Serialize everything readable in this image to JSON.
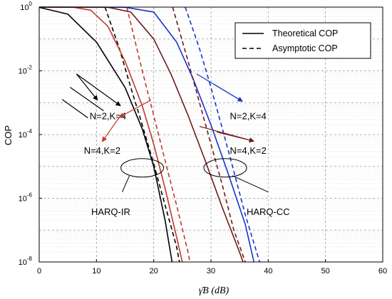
{
  "chart_data": {
    "type": "line",
    "yscale": "log",
    "xlim": [
      0,
      60
    ],
    "ylim": [
      1e-08,
      1
    ],
    "grid": true,
    "xlabel": "γ̄B (dB)",
    "ylabel": "COP",
    "x_ticks": [
      "0",
      "10",
      "20",
      "30",
      "40",
      "50",
      "60"
    ],
    "y_ticks": [
      {
        "base": "10",
        "exp": "0"
      },
      {
        "base": "10",
        "exp": "-2"
      },
      {
        "base": "10",
        "exp": "-4"
      },
      {
        "base": "10",
        "exp": "-6"
      },
      {
        "base": "10",
        "exp": "-8"
      }
    ],
    "legend": {
      "position": "top-right",
      "entries": [
        {
          "label": "Theoretical COP",
          "style": "solid"
        },
        {
          "label": "Asymptotic COP",
          "style": "dashed"
        }
      ]
    },
    "series": [
      {
        "group": "HARQ-IR",
        "params": "N=2,K=4",
        "kind": "theoretical",
        "color": "#000000",
        "style": "solid",
        "points": [
          [
            0,
            0.98
          ],
          [
            5,
            0.6
          ],
          [
            10,
            0.08
          ],
          [
            15,
            0.003
          ],
          [
            18,
            0.00015
          ],
          [
            20,
            1e-05
          ],
          [
            22,
            2e-07
          ],
          [
            23.2,
            1e-08
          ]
        ]
      },
      {
        "group": "HARQ-IR",
        "params": "N=2,K=4",
        "kind": "asymptotic",
        "color": "#000000",
        "style": "dashed",
        "points": [
          [
            11.5,
            1
          ],
          [
            14,
            0.05
          ],
          [
            16,
            0.003
          ],
          [
            18,
            0.0002
          ],
          [
            20,
            1.2e-05
          ],
          [
            22,
            6e-07
          ],
          [
            24,
            3e-08
          ],
          [
            24.5,
            1e-08
          ]
        ]
      },
      {
        "group": "HARQ-IR",
        "params": "N=4,K=2",
        "kind": "theoretical",
        "color": "#c0392b",
        "style": "solid",
        "points": [
          [
            0,
            1
          ],
          [
            6,
            0.99
          ],
          [
            9,
            0.8
          ],
          [
            12,
            0.25
          ],
          [
            15,
            0.02
          ],
          [
            18,
            0.0008
          ],
          [
            20,
            5e-05
          ],
          [
            22,
            2e-06
          ],
          [
            24,
            6e-08
          ],
          [
            25,
            1e-08
          ]
        ]
      },
      {
        "group": "HARQ-IR",
        "params": "N=4,K=2",
        "kind": "asymptotic",
        "color": "#c0392b",
        "style": "dashed",
        "points": [
          [
            15.3,
            1
          ],
          [
            18,
            0.01
          ],
          [
            20,
            0.0004
          ],
          [
            22,
            1.5e-05
          ],
          [
            24,
            6e-07
          ],
          [
            26,
            2e-08
          ],
          [
            26.3,
            1e-08
          ]
        ]
      },
      {
        "group": "HARQ-CC",
        "params": "N=2,K=4",
        "kind": "theoretical",
        "color": "#1a33cc",
        "style": "solid",
        "points": [
          [
            0,
            1
          ],
          [
            15,
            0.99
          ],
          [
            20,
            0.7
          ],
          [
            24,
            0.08
          ],
          [
            27,
            0.005
          ],
          [
            30,
            0.0002
          ],
          [
            33,
            6e-06
          ],
          [
            36,
            1.5e-07
          ],
          [
            37.5,
            1e-08
          ]
        ]
      },
      {
        "group": "HARQ-CC",
        "params": "N=2,K=4",
        "kind": "asymptotic",
        "color": "#1a33cc",
        "style": "dashed",
        "points": [
          [
            25.5,
            1
          ],
          [
            28,
            0.05
          ],
          [
            30,
            0.003
          ],
          [
            32,
            0.00015
          ],
          [
            34,
            7e-06
          ],
          [
            36,
            3e-07
          ],
          [
            38.5,
            1e-08
          ]
        ]
      },
      {
        "group": "HARQ-CC",
        "params": "N=4,K=2",
        "kind": "theoretical",
        "color": "#6b1c1c",
        "style": "solid",
        "points": [
          [
            0,
            1
          ],
          [
            12,
            0.99
          ],
          [
            16,
            0.7
          ],
          [
            20,
            0.1
          ],
          [
            23,
            0.008
          ],
          [
            26,
            0.0004
          ],
          [
            29,
            1.5e-05
          ],
          [
            32,
            5e-07
          ],
          [
            35,
            2e-08
          ],
          [
            35.6,
            1e-08
          ]
        ]
      },
      {
        "group": "HARQ-CC",
        "params": "N=4,K=2",
        "kind": "asymptotic",
        "color": "#6b1c1c",
        "style": "dashed",
        "points": [
          [
            23.3,
            1
          ],
          [
            26,
            0.02
          ],
          [
            28,
            0.001
          ],
          [
            30,
            5e-05
          ],
          [
            32,
            2.5e-06
          ],
          [
            34,
            1e-07
          ],
          [
            36,
            1e-08
          ]
        ]
      }
    ],
    "annotations": [
      {
        "text": "N=2,K=4",
        "at": [
          12,
          0.0003
        ],
        "arrow_to": [
          [
            10,
            0.01
          ],
          [
            13,
            0.01
          ]
        ],
        "arrow_colors": [
          "#000000",
          "#000000"
        ]
      },
      {
        "text": "N=4,K=2",
        "at": [
          11,
          2.5e-05
        ],
        "arrow_to": [
          [
            9.5,
            8e-05
          ],
          [
            13,
            8e-05
          ]
        ],
        "arrow_colors": [
          "#c0392b",
          "#c0392b"
        ]
      },
      {
        "text": "N=2,K=4",
        "at": [
          36.5,
          0.0003
        ],
        "arrow_to": [
          [
            31,
            0.0045
          ],
          [
            31,
            0.0045
          ]
        ],
        "arrow_colors": [
          "#1a33cc",
          "#1a33cc"
        ]
      },
      {
        "text": "N=4,K=2",
        "at": [
          36.5,
          2.5e-05
        ],
        "arrow_to": [
          [
            28.5,
            0.00015
          ],
          [
            28.5,
            0.00015
          ]
        ],
        "arrow_colors": [
          "#6b1c1c",
          "#6b1c1c"
        ]
      },
      {
        "text": "HARQ-IR",
        "at": [
          12.5,
          3e-07
        ],
        "ellipse_center": [
          18,
          9e-06
        ],
        "arrow_from": [
          14.5,
          8.5e-07
        ]
      },
      {
        "text": "HARQ-CC",
        "at": [
          40,
          3e-07
        ],
        "ellipse_center": [
          32.5,
          9e-06
        ],
        "arrow_from": [
          40,
          8.5e-07
        ]
      }
    ]
  }
}
